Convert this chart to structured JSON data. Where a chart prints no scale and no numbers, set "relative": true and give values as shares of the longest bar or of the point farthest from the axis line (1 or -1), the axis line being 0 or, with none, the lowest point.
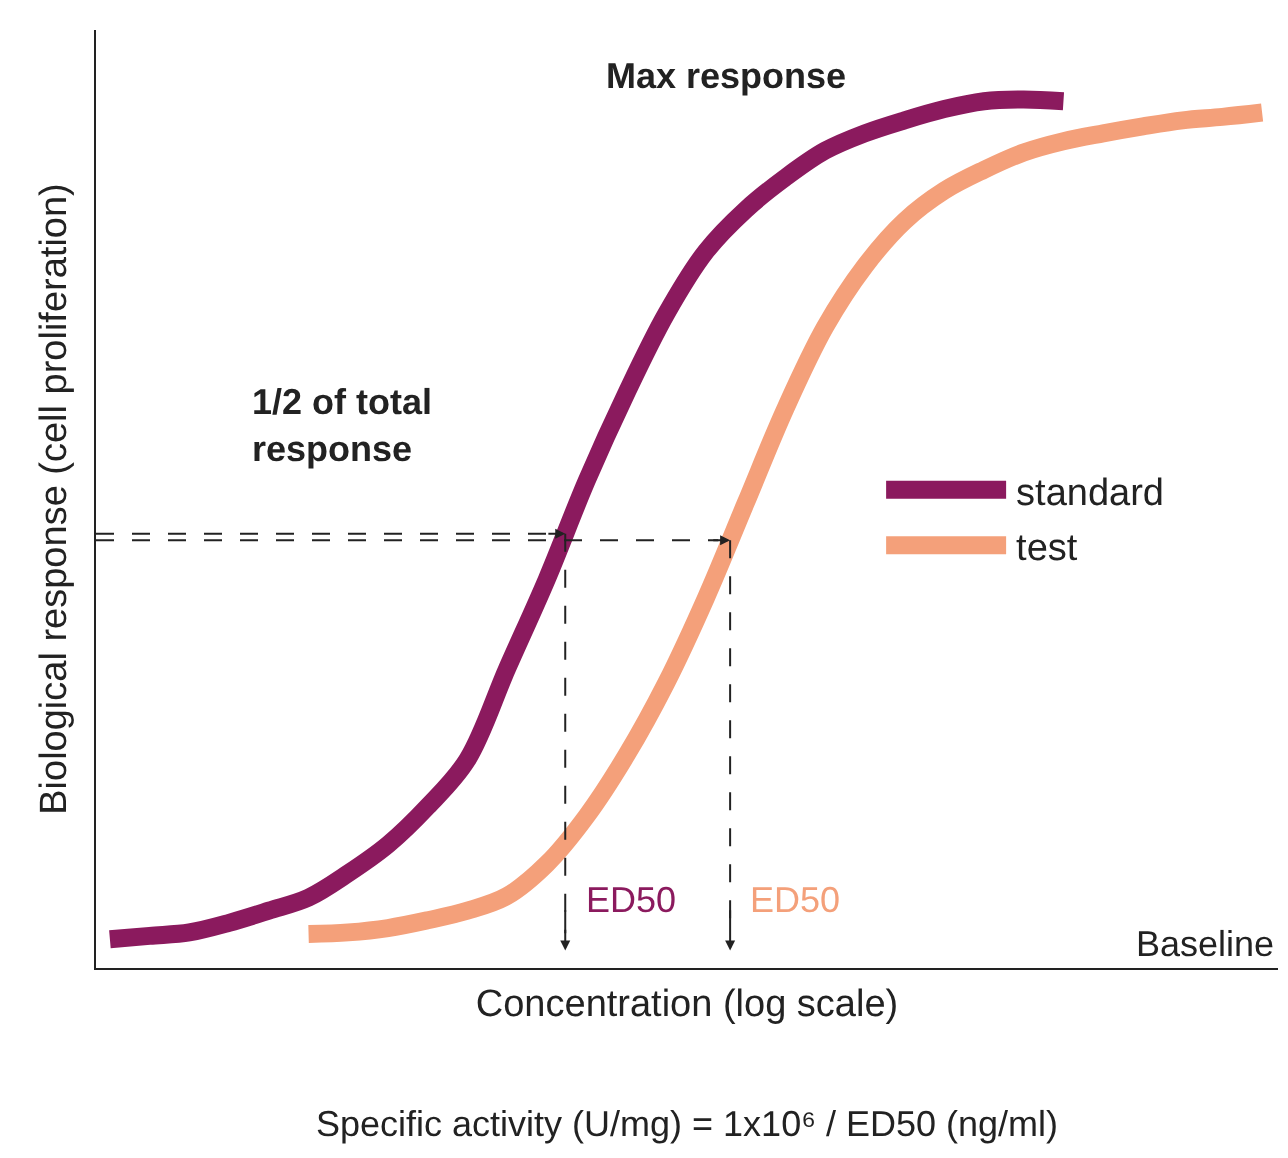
{
  "chart_data": {
    "type": "line",
    "relative": true,
    "categories": [
      null,
      null,
      null,
      null,
      null,
      null,
      null,
      null,
      null,
      null,
      null,
      null,
      null,
      null,
      null,
      null,
      null,
      null,
      null,
      null,
      null,
      null,
      null,
      null,
      null,
      null,
      null,
      null,
      null,
      null
    ],
    "series": [
      {
        "name": "standard",
        "color": "#8b1a5e",
        "values": [
          0.033,
          0.037,
          0.041,
          0.052,
          0.066,
          0.081,
          0.109,
          0.142,
          0.186,
          0.24,
          0.345,
          0.448,
          0.561,
          0.662,
          0.753,
          0.825,
          0.873,
          0.91,
          0.941,
          0.961,
          0.976,
          0.989,
          0.998,
          1.0,
          0.998,
          null,
          null,
          null,
          null,
          null
        ]
      },
      {
        "name": "test",
        "color": "#f4a07a",
        "values": [
          null,
          null,
          null,
          null,
          null,
          0.039,
          0.041,
          0.046,
          0.055,
          0.066,
          0.083,
          0.12,
          0.175,
          0.245,
          0.328,
          0.426,
          0.535,
          0.644,
          0.738,
          0.808,
          0.86,
          0.895,
          0.919,
          0.939,
          0.952,
          0.961,
          0.969,
          0.976,
          0.98,
          0.985
        ]
      }
    ],
    "xlabel": "Concentration (log scale)",
    "ylabel": "Biological response (cell proliferation)",
    "legend": "right",
    "annotations": [
      "Max response",
      "1/2 of total\nresponse",
      "ED50",
      "ED50",
      "Baseline",
      "Specific activity (U/mg) = 1x10⁶ / ED50 (ng/ml)"
    ]
  }
}
